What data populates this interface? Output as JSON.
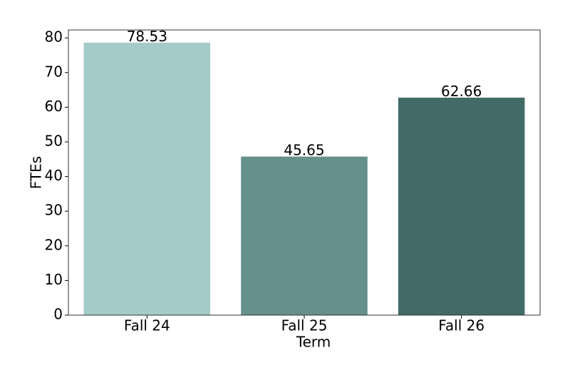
{
  "chart_data": {
    "type": "bar",
    "categories": [
      "Fall 24",
      "Fall 25",
      "Fall 26"
    ],
    "values": [
      78.53,
      45.65,
      62.66
    ],
    "colors": [
      "#a4cbc8",
      "#65908c",
      "#426b68"
    ],
    "xlabel": "Term",
    "ylabel": "FTEs",
    "ylim": [
      0,
      82.3
    ],
    "yticks": [
      0,
      10,
      20,
      30,
      40,
      50,
      60,
      70,
      80
    ],
    "grid": false
  }
}
